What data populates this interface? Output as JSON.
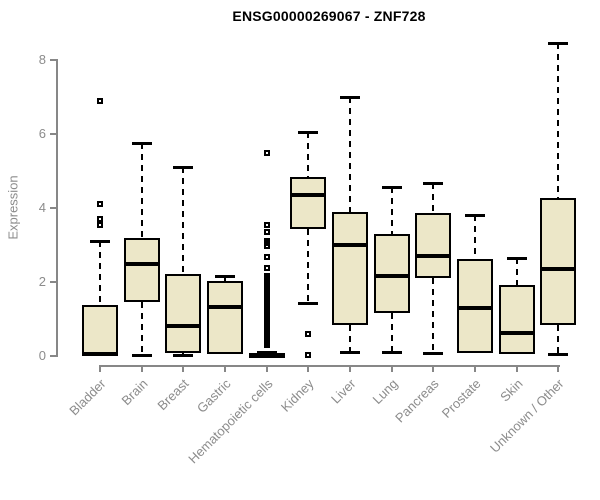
{
  "chart_data": {
    "type": "boxplot",
    "title": "ENSG00000269067 - ZNF728",
    "xlabel": "",
    "ylabel": "Expression",
    "ylim": [
      0,
      8.5
    ],
    "yticks": [
      0,
      2,
      4,
      6,
      8
    ],
    "grid": false,
    "legend_position": "none",
    "box_fill_color": "#ECE7C8",
    "box_border_color": "#000000",
    "axis_color": "#878787",
    "tick_label_color": "#8C8C8C",
    "categories": [
      "Bladder",
      "Brain",
      "Breast",
      "Gastric",
      "Hematopoietic cells",
      "Kidney",
      "Liver",
      "Lung",
      "Pancreas",
      "Prostate",
      "Skin",
      "Unknown / Other"
    ],
    "series": [
      {
        "category": "Bladder",
        "whisker_low": 0,
        "q1": 0,
        "median": 0.05,
        "q3": 1.38,
        "whisker_high": 3.1,
        "outliers": [
          3.55,
          3.7,
          4.1,
          6.9
        ]
      },
      {
        "category": "Brain",
        "whisker_low": 0.03,
        "q1": 1.47,
        "median": 2.5,
        "q3": 3.2,
        "whisker_high": 5.75,
        "outliers": []
      },
      {
        "category": "Breast",
        "whisker_low": 0.03,
        "q1": 0.08,
        "median": 0.82,
        "q3": 2.22,
        "whisker_high": 5.1,
        "outliers": []
      },
      {
        "category": "Gastric",
        "whisker_low": 0.03,
        "q1": 0.05,
        "median": 1.33,
        "q3": 2.03,
        "whisker_high": 2.15,
        "outliers": []
      },
      {
        "category": "Hematopoietic cells",
        "whisker_low": 0,
        "q1": 0,
        "median": 0.02,
        "q3": 0.06,
        "whisker_high": 0.1,
        "outliers": [
          5.5,
          3.55,
          3.35,
          3.12,
          3.05,
          2.98,
          2.68,
          2.38,
          2.15,
          2.1,
          2.05,
          2.0,
          1.95,
          1.9,
          1.85,
          1.8,
          1.75,
          1.7,
          1.65,
          1.6,
          1.55,
          1.5,
          1.45,
          1.4,
          1.35,
          1.3,
          1.25,
          1.2,
          1.15,
          1.1,
          1.05,
          1.0,
          0.95,
          0.9,
          0.85,
          0.8,
          0.75,
          0.7,
          0.65,
          0.6,
          0.55,
          0.5,
          0.45,
          0.4,
          0.35,
          0.3
        ]
      },
      {
        "category": "Kidney",
        "whisker_low": 1.42,
        "q1": 3.42,
        "median": 4.35,
        "q3": 4.85,
        "whisker_high": 6.05,
        "outliers": [
          0.6,
          0.02
        ]
      },
      {
        "category": "Liver",
        "whisker_low": 0.12,
        "q1": 0.85,
        "median": 3.0,
        "q3": 3.88,
        "whisker_high": 7.0,
        "outliers": []
      },
      {
        "category": "Lung",
        "whisker_low": 0.1,
        "q1": 1.16,
        "median": 2.16,
        "q3": 3.3,
        "whisker_high": 4.58,
        "outliers": []
      },
      {
        "category": "Pancreas",
        "whisker_low": 0.07,
        "q1": 2.1,
        "median": 2.7,
        "q3": 3.86,
        "whisker_high": 4.68,
        "outliers": []
      },
      {
        "category": "Prostate",
        "whisker_low": 0.05,
        "q1": 0.08,
        "median": 1.29,
        "q3": 2.61,
        "whisker_high": 3.82,
        "outliers": []
      },
      {
        "category": "Skin",
        "whisker_low": 0.03,
        "q1": 0.05,
        "median": 0.61,
        "q3": 1.92,
        "whisker_high": 2.64,
        "outliers": []
      },
      {
        "category": "Unknown / Other",
        "whisker_low": 0.05,
        "q1": 0.85,
        "median": 2.34,
        "q3": 4.28,
        "whisker_high": 8.45,
        "outliers": []
      }
    ]
  }
}
